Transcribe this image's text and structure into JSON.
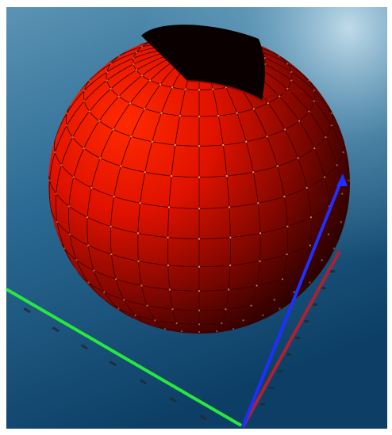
{
  "scene": {
    "background_top": "#5b93b3",
    "background_bottom": "#0d3f66",
    "sphere_color": "#ff1a00",
    "sphere_shadow": "#1a0000",
    "cutout_color": "#0a0000",
    "grid_dot_color": "#ffb87a",
    "axis_x_color": "#28e83c",
    "axis_y_color": "#1f2fff",
    "axis_z_color": "#b02030"
  }
}
